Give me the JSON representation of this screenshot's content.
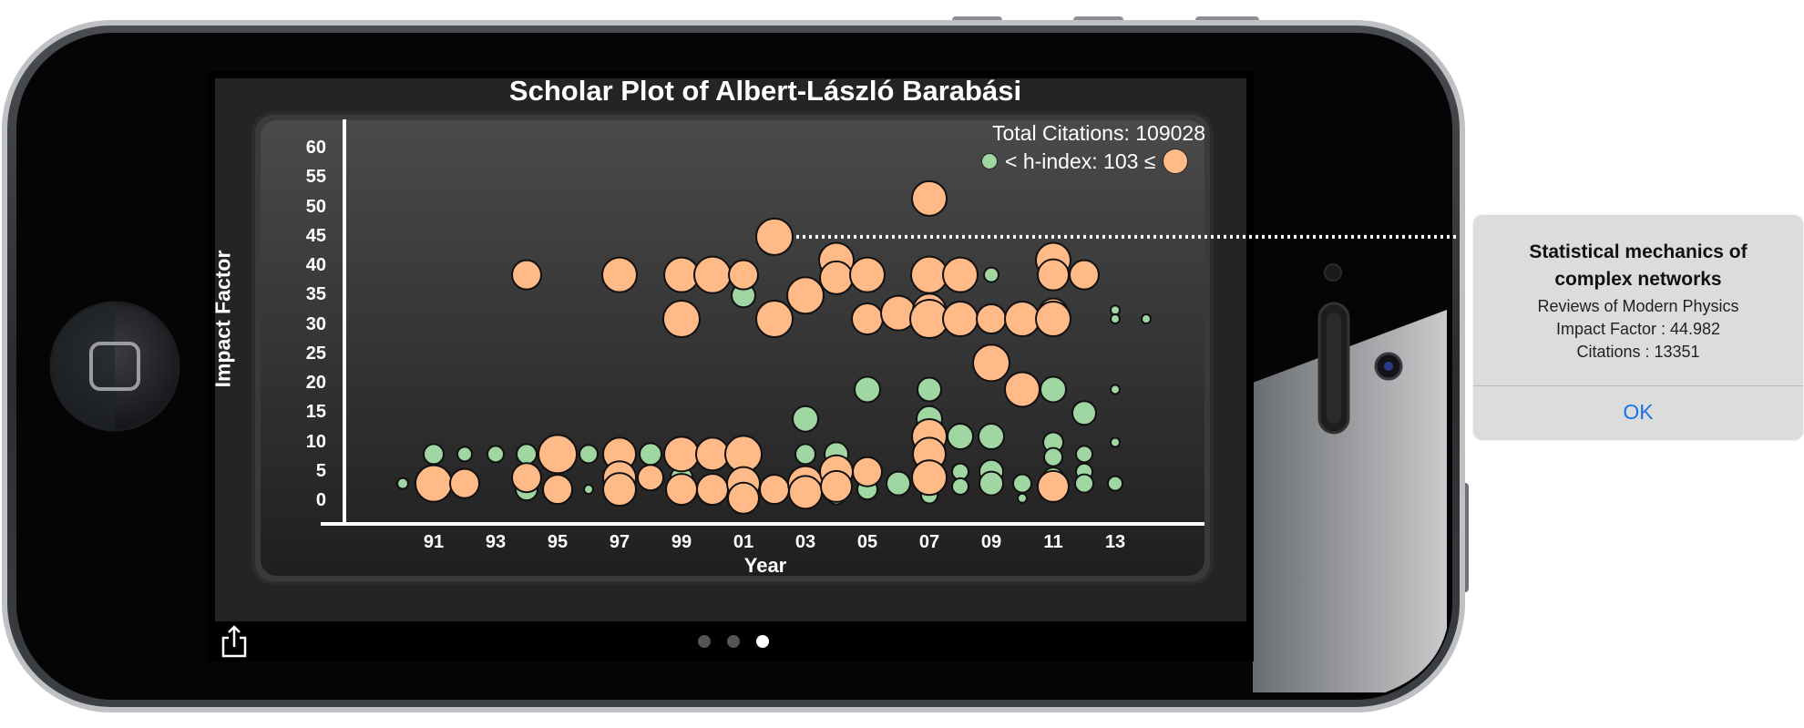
{
  "chart_data": {
    "type": "scatter",
    "title": "Scholar Plot of Albert-László Barabási",
    "xlabel": "Year",
    "ylabel": "Impact Factor",
    "x_ticks": [
      "91",
      "93",
      "95",
      "97",
      "99",
      "01",
      "03",
      "05",
      "07",
      "09",
      "11",
      "13"
    ],
    "y_ticks": [
      "60",
      "55",
      "50",
      "45",
      "40",
      "35",
      "30",
      "25",
      "20",
      "15",
      "10",
      "5",
      "0"
    ],
    "xlim": [
      1988,
      2016
    ],
    "ylim": [
      -3,
      63
    ],
    "size_encoding": "citations",
    "series": [
      {
        "name": "< h-index",
        "color": "#9fd6a2",
        "points": [
          {
            "year": 1990,
            "if": 3,
            "size": 6
          },
          {
            "year": 1991,
            "if": 8,
            "size": 11
          },
          {
            "year": 1992,
            "if": 8,
            "size": 8
          },
          {
            "year": 1992,
            "if": 3,
            "size": 13
          },
          {
            "year": 1993,
            "if": 8,
            "size": 9
          },
          {
            "year": 1994,
            "if": 38.5,
            "size": 9
          },
          {
            "year": 1994,
            "if": 8,
            "size": 11
          },
          {
            "year": 1994,
            "if": 2,
            "size": 12
          },
          {
            "year": 1995,
            "if": 2,
            "size": 10
          },
          {
            "year": 1996,
            "if": 8,
            "size": 10
          },
          {
            "year": 1996,
            "if": 2,
            "size": 5
          },
          {
            "year": 1997,
            "if": 3.5,
            "size": 9
          },
          {
            "year": 1997,
            "if": 8,
            "size": 10
          },
          {
            "year": 1998,
            "if": 8,
            "size": 12
          },
          {
            "year": 1998,
            "if": 4,
            "size": 10
          },
          {
            "year": 1999,
            "if": 38.5,
            "size": 12
          },
          {
            "year": 1999,
            "if": 4,
            "size": 12
          },
          {
            "year": 2000,
            "if": 8,
            "size": 10
          },
          {
            "year": 2001,
            "if": 35,
            "size": 13
          },
          {
            "year": 2001,
            "if": 38.5,
            "size": 8
          },
          {
            "year": 2001,
            "if": 3,
            "size": 11
          },
          {
            "year": 2002,
            "if": 3,
            "size": 9
          },
          {
            "year": 2003,
            "if": 14,
            "size": 14
          },
          {
            "year": 2003,
            "if": 8,
            "size": 11
          },
          {
            "year": 2003,
            "if": 1,
            "size": 7
          },
          {
            "year": 2004,
            "if": 8,
            "size": 13
          },
          {
            "year": 2004,
            "if": 1,
            "size": 10
          },
          {
            "year": 2004,
            "if": 2.5,
            "size": 7
          },
          {
            "year": 2005,
            "if": 19,
            "size": 14
          },
          {
            "year": 2005,
            "if": 4,
            "size": 7
          },
          {
            "year": 2005,
            "if": 2,
            "size": 11
          },
          {
            "year": 2006,
            "if": 3,
            "size": 13
          },
          {
            "year": 2007,
            "if": 19,
            "size": 13
          },
          {
            "year": 2007,
            "if": 14,
            "size": 14
          },
          {
            "year": 2007,
            "if": 1,
            "size": 9
          },
          {
            "year": 2008,
            "if": 11,
            "size": 14
          },
          {
            "year": 2008,
            "if": 5,
            "size": 9
          },
          {
            "year": 2008,
            "if": 2.5,
            "size": 9
          },
          {
            "year": 2009,
            "if": 38.5,
            "size": 8
          },
          {
            "year": 2009,
            "if": 31,
            "size": 12
          },
          {
            "year": 2009,
            "if": 11,
            "size": 14
          },
          {
            "year": 2009,
            "if": 5,
            "size": 13
          },
          {
            "year": 2009,
            "if": 3,
            "size": 13
          },
          {
            "year": 2010,
            "if": 3,
            "size": 10
          },
          {
            "year": 2010,
            "if": 0.5,
            "size": 5
          },
          {
            "year": 2011,
            "if": 19,
            "size": 14
          },
          {
            "year": 2011,
            "if": 10,
            "size": 11
          },
          {
            "year": 2011,
            "if": 7.5,
            "size": 10
          },
          {
            "year": 2011,
            "if": 4,
            "size": 11
          },
          {
            "year": 2011,
            "if": 3,
            "size": 10
          },
          {
            "year": 2011,
            "if": 38.5,
            "size": 5
          },
          {
            "year": 2012,
            "if": 38.5,
            "size": 12
          },
          {
            "year": 2012,
            "if": 15,
            "size": 13
          },
          {
            "year": 2012,
            "if": 8,
            "size": 9
          },
          {
            "year": 2012,
            "if": 5,
            "size": 9
          },
          {
            "year": 2012,
            "if": 3,
            "size": 10
          },
          {
            "year": 2013,
            "if": 32.5,
            "size": 5
          },
          {
            "year": 2013,
            "if": 31,
            "size": 5
          },
          {
            "year": 2013,
            "if": 19,
            "size": 5
          },
          {
            "year": 2013,
            "if": 10,
            "size": 5
          },
          {
            "year": 2013,
            "if": 3,
            "size": 8
          },
          {
            "year": 2014,
            "if": 31,
            "size": 5
          }
        ]
      },
      {
        "name": "h-index: 103 ≤",
        "color": "#ffba88",
        "points": [
          {
            "year": 1991,
            "if": 3,
            "size": 20
          },
          {
            "year": 1992,
            "if": 3,
            "size": 16
          },
          {
            "year": 1994,
            "if": 38.5,
            "size": 16
          },
          {
            "year": 1994,
            "if": 4,
            "size": 16
          },
          {
            "year": 1995,
            "if": 8,
            "size": 21
          },
          {
            "year": 1995,
            "if": 2,
            "size": 16
          },
          {
            "year": 1997,
            "if": 38.5,
            "size": 19
          },
          {
            "year": 1997,
            "if": 8,
            "size": 18
          },
          {
            "year": 1997,
            "if": 4,
            "size": 18
          },
          {
            "year": 1997,
            "if": 2,
            "size": 18
          },
          {
            "year": 1998,
            "if": 4,
            "size": 14
          },
          {
            "year": 1999,
            "if": 38.5,
            "size": 19
          },
          {
            "year": 1999,
            "if": 31,
            "size": 20
          },
          {
            "year": 1999,
            "if": 8,
            "size": 19
          },
          {
            "year": 1999,
            "if": 2,
            "size": 17
          },
          {
            "year": 2000,
            "if": 38.5,
            "size": 20
          },
          {
            "year": 2000,
            "if": 8,
            "size": 18
          },
          {
            "year": 2000,
            "if": 2,
            "size": 17
          },
          {
            "year": 2001,
            "if": 38.5,
            "size": 16
          },
          {
            "year": 2001,
            "if": 8,
            "size": 20
          },
          {
            "year": 2001,
            "if": 3,
            "size": 18
          },
          {
            "year": 2001,
            "if": 0.5,
            "size": 17
          },
          {
            "year": 2002,
            "if": 44.982,
            "size": 20
          },
          {
            "year": 2002,
            "if": 31,
            "size": 20
          },
          {
            "year": 2002,
            "if": 2,
            "size": 16
          },
          {
            "year": 2003,
            "if": 35,
            "size": 20
          },
          {
            "year": 2003,
            "if": 3,
            "size": 19
          },
          {
            "year": 2003,
            "if": 1.5,
            "size": 18
          },
          {
            "year": 2004,
            "if": 41,
            "size": 19
          },
          {
            "year": 2004,
            "if": 38,
            "size": 18
          },
          {
            "year": 2004,
            "if": 5,
            "size": 18
          },
          {
            "year": 2004,
            "if": 2.5,
            "size": 17
          },
          {
            "year": 2005,
            "if": 38.5,
            "size": 19
          },
          {
            "year": 2005,
            "if": 31,
            "size": 17
          },
          {
            "year": 2005,
            "if": 5,
            "size": 16
          },
          {
            "year": 2006,
            "if": 32,
            "size": 19
          },
          {
            "year": 2007,
            "if": 51.5,
            "size": 19
          },
          {
            "year": 2007,
            "if": 38.5,
            "size": 20
          },
          {
            "year": 2007,
            "if": 32.5,
            "size": 18
          },
          {
            "year": 2007,
            "if": 31,
            "size": 21
          },
          {
            "year": 2007,
            "if": 11,
            "size": 19
          },
          {
            "year": 2007,
            "if": 8,
            "size": 18
          },
          {
            "year": 2007,
            "if": 4,
            "size": 19
          },
          {
            "year": 2008,
            "if": 38.5,
            "size": 19
          },
          {
            "year": 2008,
            "if": 31,
            "size": 19
          },
          {
            "year": 2009,
            "if": 23.5,
            "size": 20
          },
          {
            "year": 2009,
            "if": 31,
            "size": 16
          },
          {
            "year": 2010,
            "if": 31,
            "size": 19
          },
          {
            "year": 2010,
            "if": 19,
            "size": 19
          },
          {
            "year": 2011,
            "if": 41,
            "size": 19
          },
          {
            "year": 2011,
            "if": 38.5,
            "size": 17
          },
          {
            "year": 2011,
            "if": 32,
            "size": 16
          },
          {
            "year": 2011,
            "if": 31,
            "size": 19
          },
          {
            "year": 2011,
            "if": 2.5,
            "size": 17
          },
          {
            "year": 2012,
            "if": 38.5,
            "size": 16
          }
        ]
      }
    ]
  },
  "legend": {
    "total_citations": "Total Citations: 109028",
    "hindex_text": "< h-index: 103 ≤",
    "small_color": "#9fd6a2",
    "large_color": "#ffba88"
  },
  "selected_point": {
    "year": 2002,
    "if": 44.982
  },
  "alert": {
    "title": "Statistical mechanics of complex networks",
    "journal": "Reviews of Modern Physics",
    "impact": "Impact Factor : 44.982",
    "citations": "Citations : 13351",
    "ok_label": "OK"
  },
  "page_control": {
    "count": 3,
    "current": 3
  },
  "icons": {
    "share": "share-icon",
    "home": "home-button-icon"
  }
}
